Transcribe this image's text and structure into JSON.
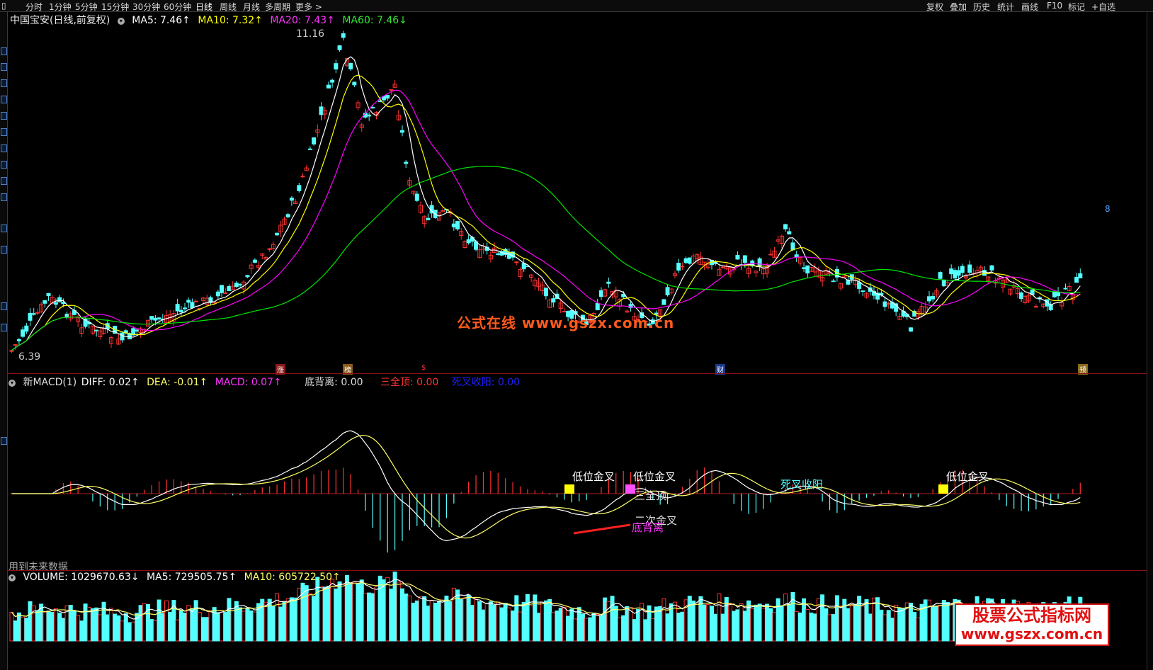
{
  "toolbar": {
    "periods": [
      "分时",
      "1分钟",
      "5分钟",
      "15分钟",
      "30分钟",
      "60分钟",
      "日线",
      "周线",
      "月线",
      "多周期",
      "更多 >"
    ],
    "actions": [
      "复权",
      "叠加",
      "历史",
      "统计",
      "画线",
      "F10",
      "标记",
      "+自选"
    ]
  },
  "main_chart": {
    "title": "中国宝安(日线,前复权)",
    "ma5": "MA5: 7.46↑",
    "ma10": "MA10: 7.32↑",
    "ma20": "MA20: 7.43↑",
    "ma60": "MA60: 7.46↓",
    "high_label": "11.16",
    "low_label": "6.39",
    "event_markers": [
      "涨",
      "榜",
      "$",
      "财",
      "预"
    ],
    "right_marker": "8"
  },
  "macd_panel": {
    "title": "新MACD(1)",
    "diff": "DIFF: 0.02↑",
    "dea": "DEA: -0.01↑",
    "macd": "MACD: 0.07↑",
    "bottom_div": "底背离: 0.00",
    "triple": "三全顶: 0.00",
    "death_cross": "死叉收阳: 0.00",
    "signals": [
      "低位金叉",
      "低位金叉",
      "低位金叉",
      "三全顶",
      "二次金叉",
      "底背离",
      "死叉收阳"
    ],
    "future_data_note": "用到未来数据"
  },
  "volume_panel": {
    "volume": "VOLUME: 1029670.63↓",
    "ma5": "MA5: 729505.75↑",
    "ma10": "MA10: 605722.50↑"
  },
  "watermarks": {
    "center": "公式在线 www.gszx.com.cn",
    "corner_line1": "股票公式指标网",
    "corner_line2": "www.gszx.com.cn"
  },
  "colors": {
    "up": "#ff3232",
    "down": "#54ffff",
    "ma5": "#ffffff",
    "ma10": "#ffff00",
    "ma20": "#ff00ff",
    "ma60": "#00e600",
    "diff": "#ffffff",
    "dea": "#ffff66"
  }
}
